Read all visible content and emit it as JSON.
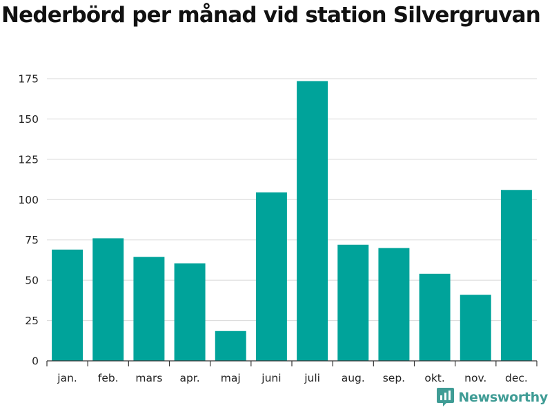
{
  "title": "Nederbörd per månad vid station Silvergruvan",
  "brand": {
    "name": "Newsworthy",
    "icon": "newsworthy-logo-icon",
    "color": "#3f9c95"
  },
  "colors": {
    "bar": "#00a39a",
    "grid": "#d8d8d8",
    "axis": "#333333"
  },
  "chart_data": {
    "type": "bar",
    "title": "Nederbörd per månad vid station Silvergruvan",
    "xlabel": "",
    "ylabel": "",
    "categories": [
      "jan.",
      "feb.",
      "mars",
      "apr.",
      "maj",
      "juni",
      "juli",
      "aug.",
      "sep.",
      "okt.",
      "nov.",
      "dec."
    ],
    "values": [
      69,
      76,
      64.5,
      60.5,
      18.5,
      104.5,
      173.5,
      72,
      70,
      54,
      41,
      106
    ],
    "ylim": [
      0,
      175
    ],
    "yticks": [
      0,
      25,
      50,
      75,
      100,
      125,
      150,
      175
    ],
    "grid": true,
    "legend": "none"
  }
}
